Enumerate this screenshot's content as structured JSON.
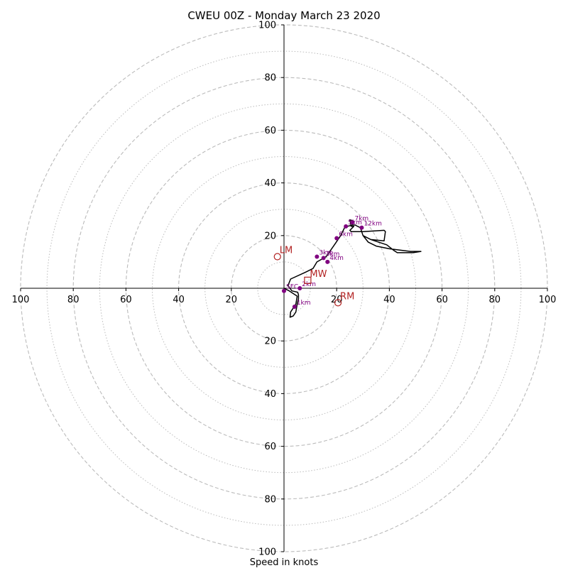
{
  "chart_data": {
    "type": "hodograph",
    "title": "CWEU 00Z - Monday March 23 2020",
    "xlabel": "Speed in knots",
    "ylabel": "",
    "range": [
      -100,
      100
    ],
    "major_rings": [
      20,
      40,
      60,
      80,
      100
    ],
    "minor_rings": [
      10,
      30,
      50,
      70,
      90
    ],
    "x_ticks": [
      "100",
      "80",
      "60",
      "40",
      "20",
      "0",
      "20",
      "40",
      "60",
      "80",
      "100"
    ],
    "x_tick_values": [
      -100,
      -80,
      -60,
      -40,
      -20,
      0,
      20,
      40,
      60,
      80,
      100
    ],
    "y_ticks": [
      "100",
      "80",
      "60",
      "40",
      "20",
      "20",
      "40",
      "60",
      "80",
      "100"
    ],
    "y_tick_values": [
      100,
      80,
      60,
      40,
      20,
      -20,
      -40,
      -60,
      -80,
      -100
    ],
    "colors": {
      "trace": "#000000",
      "heights": "#800080",
      "motion": "#b22222",
      "grid": "#bbbbbb"
    },
    "trace": [
      [
        0,
        0
      ],
      [
        2,
        -1
      ],
      [
        5,
        -3
      ],
      [
        4.5,
        -6
      ],
      [
        2.5,
        -9
      ],
      [
        2.3,
        -11
      ],
      [
        3.5,
        -10.5
      ],
      [
        4.5,
        -9
      ],
      [
        5,
        -6
      ],
      [
        5.5,
        -4
      ],
      [
        5.5,
        -2.5
      ],
      [
        5.2,
        -1.5
      ],
      [
        3,
        -1
      ],
      [
        1.5,
        1
      ],
      [
        2.5,
        3.5
      ],
      [
        8,
        6
      ],
      [
        11,
        7.5
      ],
      [
        12.5,
        10
      ],
      [
        16,
        12
      ],
      [
        19.5,
        17
      ],
      [
        21.5,
        20
      ],
      [
        23,
        23
      ],
      [
        24,
        23.5
      ],
      [
        26,
        24
      ],
      [
        26.5,
        25.5
      ],
      [
        25,
        26
      ],
      [
        25.5,
        23.5
      ],
      [
        26.5,
        23.5
      ],
      [
        25,
        22
      ],
      [
        25.5,
        21.5
      ],
      [
        30,
        21.5
      ],
      [
        38,
        22
      ],
      [
        38.5,
        21.5
      ],
      [
        38,
        18
      ],
      [
        33,
        18.5
      ],
      [
        30,
        20
      ],
      [
        32,
        17.5
      ],
      [
        35,
        16
      ],
      [
        40,
        15
      ],
      [
        44,
        14.5
      ],
      [
        48,
        14
      ],
      [
        52,
        14
      ],
      [
        49,
        13.5
      ],
      [
        43,
        13.5
      ],
      [
        41.5,
        14.5
      ],
      [
        39,
        16.5
      ],
      [
        33,
        18.5
      ],
      [
        30,
        20
      ],
      [
        29,
        23
      ],
      [
        27,
        24
      ],
      [
        26,
        24
      ]
    ],
    "height_points": [
      {
        "label": "SFC",
        "u": 0,
        "v": -1
      },
      {
        "label": "1km",
        "u": 4,
        "v": -7
      },
      {
        "label": "2km",
        "u": 6,
        "v": 0
      },
      {
        "label": "3km",
        "u": 12.5,
        "v": 12
      },
      {
        "label": "3km",
        "u": 15,
        "v": 11.5
      },
      {
        "label": "4km",
        "u": 16.5,
        "v": 10
      },
      {
        "label": "6km",
        "u": 20,
        "v": 19
      },
      {
        "label": "5km",
        "u": 23.5,
        "v": 23.5
      },
      {
        "label": "7km",
        "u": 26,
        "v": 25
      },
      {
        "label": "12km",
        "u": 29.5,
        "v": 23
      }
    ],
    "storm_motion": [
      {
        "label": "LM",
        "u": -2.5,
        "v": 12,
        "marker": "circle"
      },
      {
        "label": "RM",
        "u": 20.5,
        "v": -5.5,
        "marker": "circle"
      },
      {
        "label": "MW",
        "u": 9,
        "v": 3,
        "marker": "square"
      }
    ]
  }
}
